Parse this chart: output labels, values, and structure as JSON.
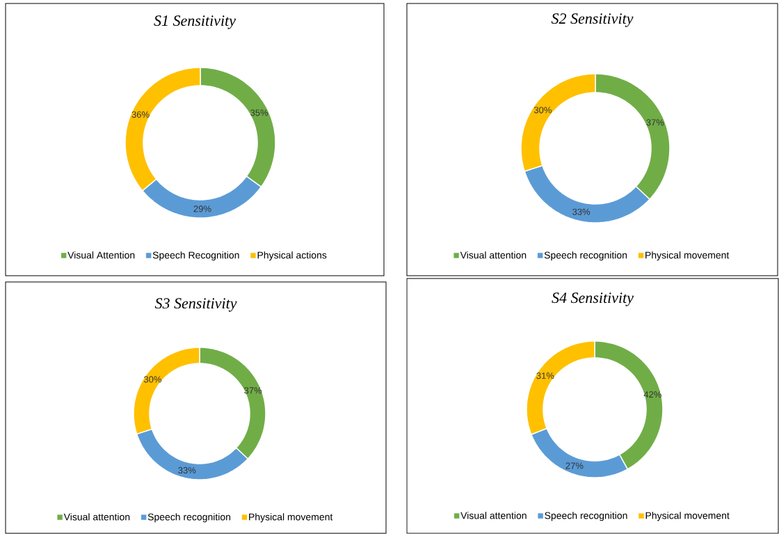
{
  "chart_data": [
    {
      "type": "donut",
      "title": "S1 Sensitivity",
      "categories": [
        "Visual Attention",
        "Speech Recognition",
        "Physical actions"
      ],
      "values": [
        35,
        29,
        36
      ],
      "value_labels": [
        "35%",
        "29%",
        "36%"
      ],
      "colors": [
        "#70ad47",
        "#5b9bd5",
        "#ffc000"
      ],
      "legend": "bottom"
    },
    {
      "type": "donut",
      "title": "S2 Sensitivity",
      "categories": [
        "Visual attention",
        "Speech recognition",
        "Physical movement"
      ],
      "values": [
        37,
        33,
        30
      ],
      "value_labels": [
        "37%",
        "33%",
        "30%"
      ],
      "colors": [
        "#70ad47",
        "#5b9bd5",
        "#ffc000"
      ],
      "legend": "bottom"
    },
    {
      "type": "donut",
      "title": "S3 Sensitivity",
      "categories": [
        "Visual attention",
        "Speech recognition",
        "Physical movement"
      ],
      "values": [
        37,
        33,
        30
      ],
      "value_labels": [
        "37%",
        "33%",
        "30%"
      ],
      "colors": [
        "#70ad47",
        "#5b9bd5",
        "#ffc000"
      ],
      "legend": "bottom"
    },
    {
      "type": "donut",
      "title": "S4 Sensitivity",
      "categories": [
        "Visual attention",
        "Speech recognition",
        "Physical movement"
      ],
      "values": [
        42,
        27,
        31
      ],
      "value_labels": [
        "42%",
        "27%",
        "31%"
      ],
      "colors": [
        "#70ad47",
        "#5b9bd5",
        "#ffc000"
      ],
      "legend": "bottom"
    }
  ]
}
